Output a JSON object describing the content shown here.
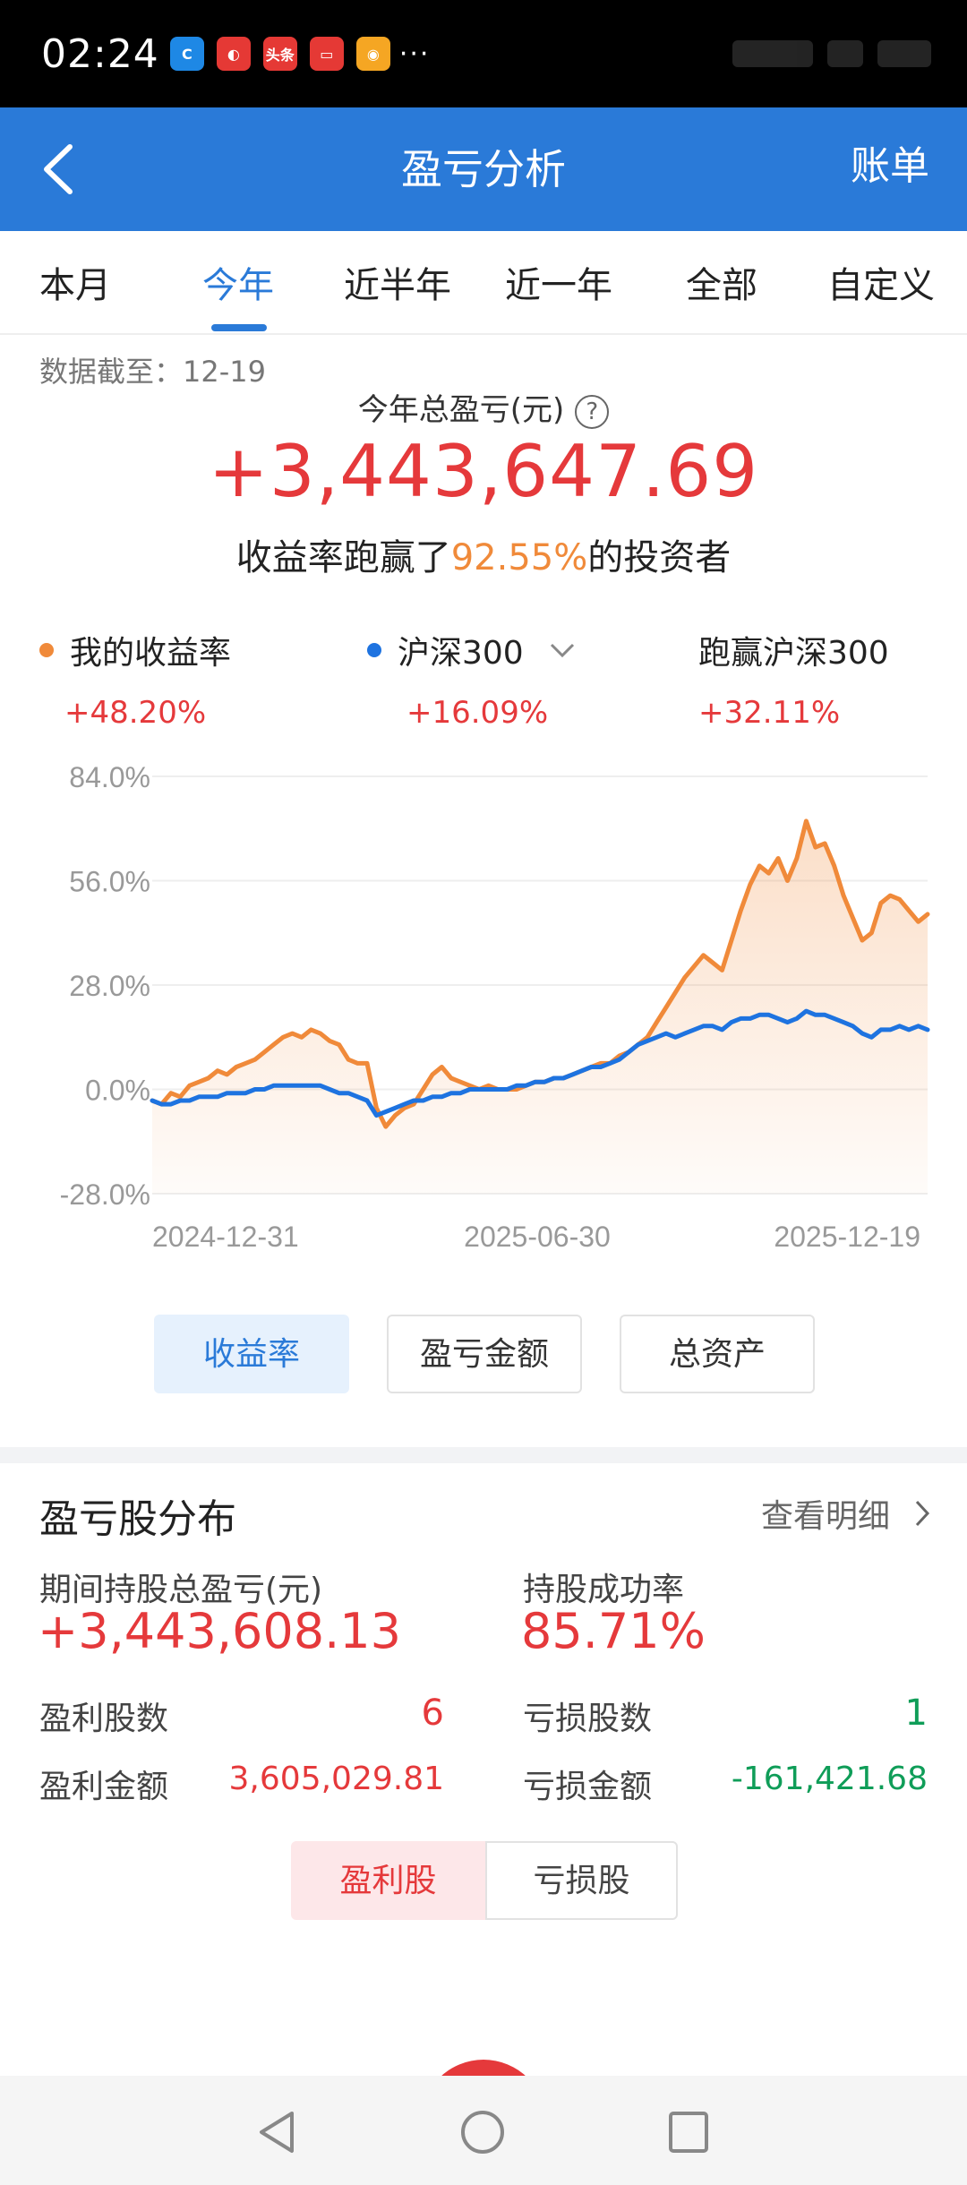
{
  "status_bar": {
    "time": "02:24",
    "app_icons": [
      {
        "name": "ctrip-icon",
        "color": "#1e88e5",
        "glyph": "C"
      },
      {
        "name": "app-red-icon",
        "color": "#e53935",
        "glyph": "◐"
      },
      {
        "name": "toutiao-icon",
        "color": "#e53935",
        "glyph": "头条"
      },
      {
        "name": "app-message-icon",
        "color": "#e53935",
        "glyph": "▭"
      },
      {
        "name": "weibo-icon",
        "color": "#f5a623",
        "glyph": "◉"
      }
    ],
    "more": "···"
  },
  "navbar": {
    "title": "盈亏分析",
    "right_label": "账单"
  },
  "tabs": [
    {
      "label": "本月",
      "active": false
    },
    {
      "label": "今年",
      "active": true
    },
    {
      "label": "近半年",
      "active": false
    },
    {
      "label": "近一年",
      "active": false
    },
    {
      "label": "全部",
      "active": false
    },
    {
      "label": "自定义",
      "active": false
    }
  ],
  "summary": {
    "as_of": "数据截至：12-19",
    "total_label": "今年总盈亏(元)",
    "total_value": "+3,443,647.69",
    "beat_prefix": "收益率跑赢了",
    "beat_pct": "92.55%",
    "beat_suffix": "的投资者"
  },
  "legend": {
    "mine": {
      "label": "我的收益率",
      "value": "+48.20%"
    },
    "index": {
      "label": "沪深300",
      "value": "+16.09%"
    },
    "excess": {
      "label": "跑赢沪深300",
      "value": "+32.11%"
    }
  },
  "chart_data": {
    "type": "line",
    "yticks": [
      "84.0%",
      "56.0%",
      "28.0%",
      "0.0%",
      "-28.0%"
    ],
    "ylim": [
      -28,
      84
    ],
    "xticks": [
      "2024-12-31",
      "2025-06-30",
      "2025-12-19"
    ],
    "colors": {
      "mine": "#f08a3a",
      "index": "#1e73e0",
      "fill": "#f08a3a"
    },
    "series": [
      {
        "name": "我的收益率",
        "color": "#f08a3a",
        "values": [
          -3,
          -4,
          -1,
          -2,
          1,
          2,
          3,
          5,
          4,
          6,
          7,
          8,
          10,
          12,
          14,
          15,
          14,
          16,
          15,
          13,
          12,
          8,
          7,
          7,
          -5,
          -10,
          -7,
          -5,
          -4,
          0,
          4,
          6,
          3,
          2,
          1,
          0,
          1,
          0,
          0,
          0,
          1,
          2,
          2,
          3,
          3,
          4,
          5,
          6,
          7,
          7,
          9,
          10,
          12,
          14,
          18,
          22,
          26,
          30,
          33,
          36,
          34,
          32,
          40,
          48,
          55,
          60,
          58,
          62,
          56,
          62,
          72,
          65,
          66,
          60,
          52,
          46,
          40,
          42,
          50,
          52,
          51,
          48,
          45,
          47
        ]
      },
      {
        "name": "沪深300",
        "color": "#1e73e0",
        "values": [
          -3,
          -4,
          -4,
          -3,
          -3,
          -2,
          -2,
          -2,
          -1,
          -1,
          -1,
          0,
          0,
          1,
          1,
          1,
          1,
          1,
          1,
          0,
          -1,
          -1,
          -2,
          -3,
          -7,
          -6,
          -5,
          -4,
          -3,
          -3,
          -2,
          -2,
          -1,
          -1,
          0,
          0,
          0,
          0,
          0,
          1,
          1,
          2,
          2,
          3,
          3,
          4,
          5,
          6,
          6,
          7,
          8,
          10,
          12,
          13,
          14,
          15,
          14,
          15,
          16,
          17,
          17,
          16,
          18,
          19,
          19,
          20,
          20,
          19,
          18,
          19,
          21,
          20,
          20,
          19,
          18,
          17,
          15,
          14,
          16,
          16,
          17,
          16,
          17,
          16
        ]
      }
    ]
  },
  "metric_buttons": [
    {
      "label": "收益率",
      "active": true
    },
    {
      "label": "盈亏金额",
      "active": false
    },
    {
      "label": "总资产",
      "active": false
    }
  ],
  "distribution": {
    "title": "盈亏股分布",
    "detail_link": "查看明细",
    "period_label": "期间持股总盈亏(元)",
    "period_value": "+3,443,608.13",
    "success_label": "持股成功率",
    "success_value": "85.71%",
    "profit_count_label": "盈利股数",
    "profit_count": "6",
    "loss_count_label": "亏损股数",
    "loss_count": "1",
    "profit_amount_label": "盈利金额",
    "profit_amount": "3,605,029.81",
    "loss_amount_label": "亏损金额",
    "loss_amount": "-161,421.68",
    "segments": [
      "盈利股",
      "亏损股"
    ]
  }
}
